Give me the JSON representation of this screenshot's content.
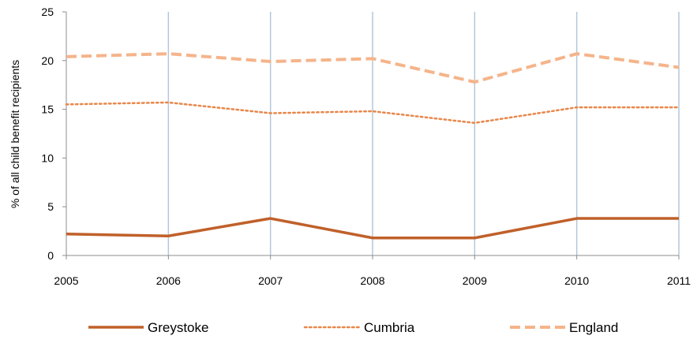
{
  "chart_data": {
    "type": "line",
    "title": "",
    "xlabel": "",
    "ylabel": "% of all child benefit recipients",
    "x": [
      "2005",
      "2006",
      "2007",
      "2008",
      "2009",
      "2010",
      "2011"
    ],
    "y_ticks": [
      "0",
      "5",
      "10",
      "15",
      "20",
      "25"
    ],
    "ylim": [
      0,
      25
    ],
    "grid": "vertical",
    "legend_position": "bottom",
    "series": [
      {
        "name": "Greystoke",
        "values": [
          2.2,
          2.0,
          3.8,
          1.8,
          1.8,
          3.8,
          3.8
        ],
        "color": "#c0602a",
        "style": "solid"
      },
      {
        "name": "Cumbria",
        "values": [
          15.5,
          15.7,
          14.6,
          14.8,
          13.6,
          15.2,
          15.2
        ],
        "color": "#e8874a",
        "style": "dotted"
      },
      {
        "name": "England",
        "values": [
          20.4,
          20.7,
          19.9,
          20.2,
          17.8,
          20.7,
          19.3
        ],
        "color": "#f5b48a",
        "style": "dashed"
      }
    ]
  }
}
